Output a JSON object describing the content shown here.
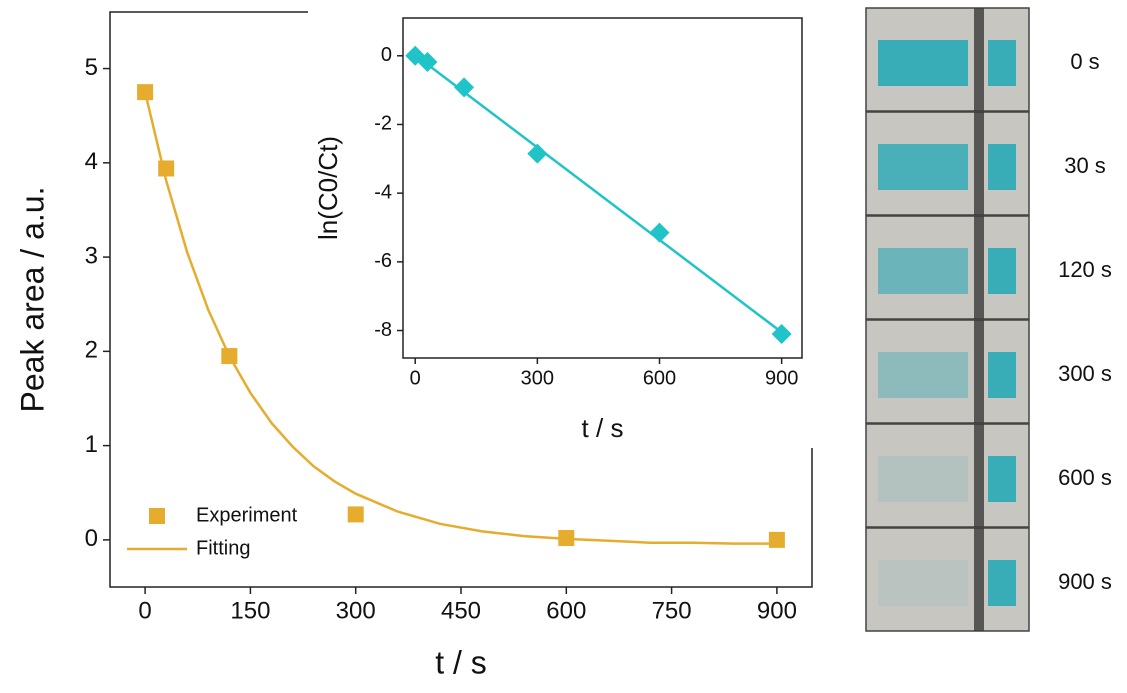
{
  "chart_data": [
    {
      "type": "scatter",
      "x_label": "t / s",
      "y_label": "Peak area / a.u.",
      "xlim": [
        -50,
        950
      ],
      "xticks": [
        0,
        150,
        300,
        450,
        600,
        750,
        900
      ],
      "ylim": [
        -0.5,
        5.6
      ],
      "yticks": [
        0,
        1,
        2,
        3,
        4,
        5
      ],
      "legend": "lower left",
      "series": [
        {
          "name": "Experiment",
          "color": "#e6ac2e",
          "marker": "square",
          "line": false,
          "x": [
            0,
            30,
            120,
            300,
            600,
            900
          ],
          "values": [
            4.75,
            3.94,
            1.95,
            0.27,
            0.02,
            0.0
          ]
        },
        {
          "name": "Fitting",
          "color": "#e6ac2e",
          "marker": "none",
          "line": true,
          "x": [
            0,
            30,
            60,
            90,
            120,
            150,
            180,
            210,
            240,
            270,
            300,
            360,
            420,
            480,
            540,
            600,
            660,
            720,
            780,
            840,
            900
          ],
          "values": [
            4.75,
            3.81,
            3.05,
            2.44,
            1.95,
            1.56,
            1.24,
            0.99,
            0.78,
            0.62,
            0.49,
            0.3,
            0.17,
            0.09,
            0.04,
            0.01,
            -0.01,
            -0.03,
            -0.03,
            -0.04,
            -0.04
          ]
        }
      ]
    },
    {
      "type": "scatter",
      "x_label": "t / s",
      "y_label": "ln(C0/Ct)",
      "xlim": [
        -30,
        950
      ],
      "xticks": [
        0,
        300,
        600,
        900
      ],
      "ylim": [
        -8.8,
        1.1
      ],
      "yticks": [
        0,
        -2,
        -4,
        -6,
        -8
      ],
      "series": [
        {
          "color": "#20c4c8",
          "marker": "diamond",
          "line": false,
          "x": [
            0,
            30,
            120,
            300,
            600,
            900
          ],
          "values": [
            0,
            -0.18,
            -0.92,
            -2.85,
            -5.15,
            -8.1
          ]
        },
        {
          "color": "#20c4c8",
          "marker": "none",
          "line": true,
          "x": [
            0,
            900
          ],
          "values": [
            0.02,
            -8.05
          ]
        }
      ]
    }
  ],
  "photos": [
    {
      "label": "0 s"
    },
    {
      "label": "30 s"
    },
    {
      "label": "120 s"
    },
    {
      "label": "300 s"
    },
    {
      "label": "600 s"
    },
    {
      "label": "900 s"
    }
  ]
}
